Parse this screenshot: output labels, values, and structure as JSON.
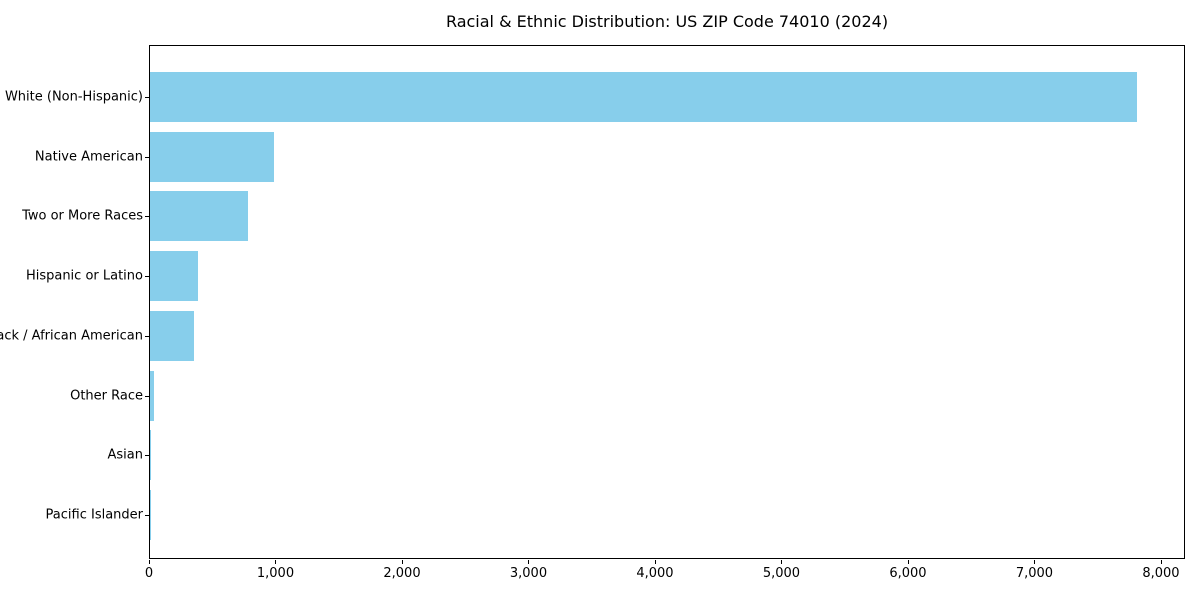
{
  "chart_data": {
    "type": "bar",
    "orientation": "horizontal",
    "title": "Racial & Ethnic Distribution: US ZIP Code 74010 (2024)",
    "categories": [
      "White (Non-Hispanic)",
      "Native American",
      "Two or More Races",
      "Hispanic or Latino",
      "Black / African American",
      "Other Race",
      "Asian",
      "Pacific Islander"
    ],
    "values": [
      7800,
      980,
      775,
      380,
      350,
      30,
      8,
      2
    ],
    "xlabel": "",
    "ylabel": "",
    "xlim": [
      0,
      8190
    ],
    "xticks": [
      0,
      1000,
      2000,
      3000,
      4000,
      5000,
      6000,
      7000,
      8000
    ],
    "xtick_labels": [
      "0",
      "1,000",
      "2,000",
      "3,000",
      "4,000",
      "5,000",
      "6,000",
      "7,000",
      "8,000"
    ],
    "bar_color": "#87CEEB",
    "axis_color": "#000000",
    "background_color": "#ffffff",
    "grid": false,
    "legend": null
  }
}
